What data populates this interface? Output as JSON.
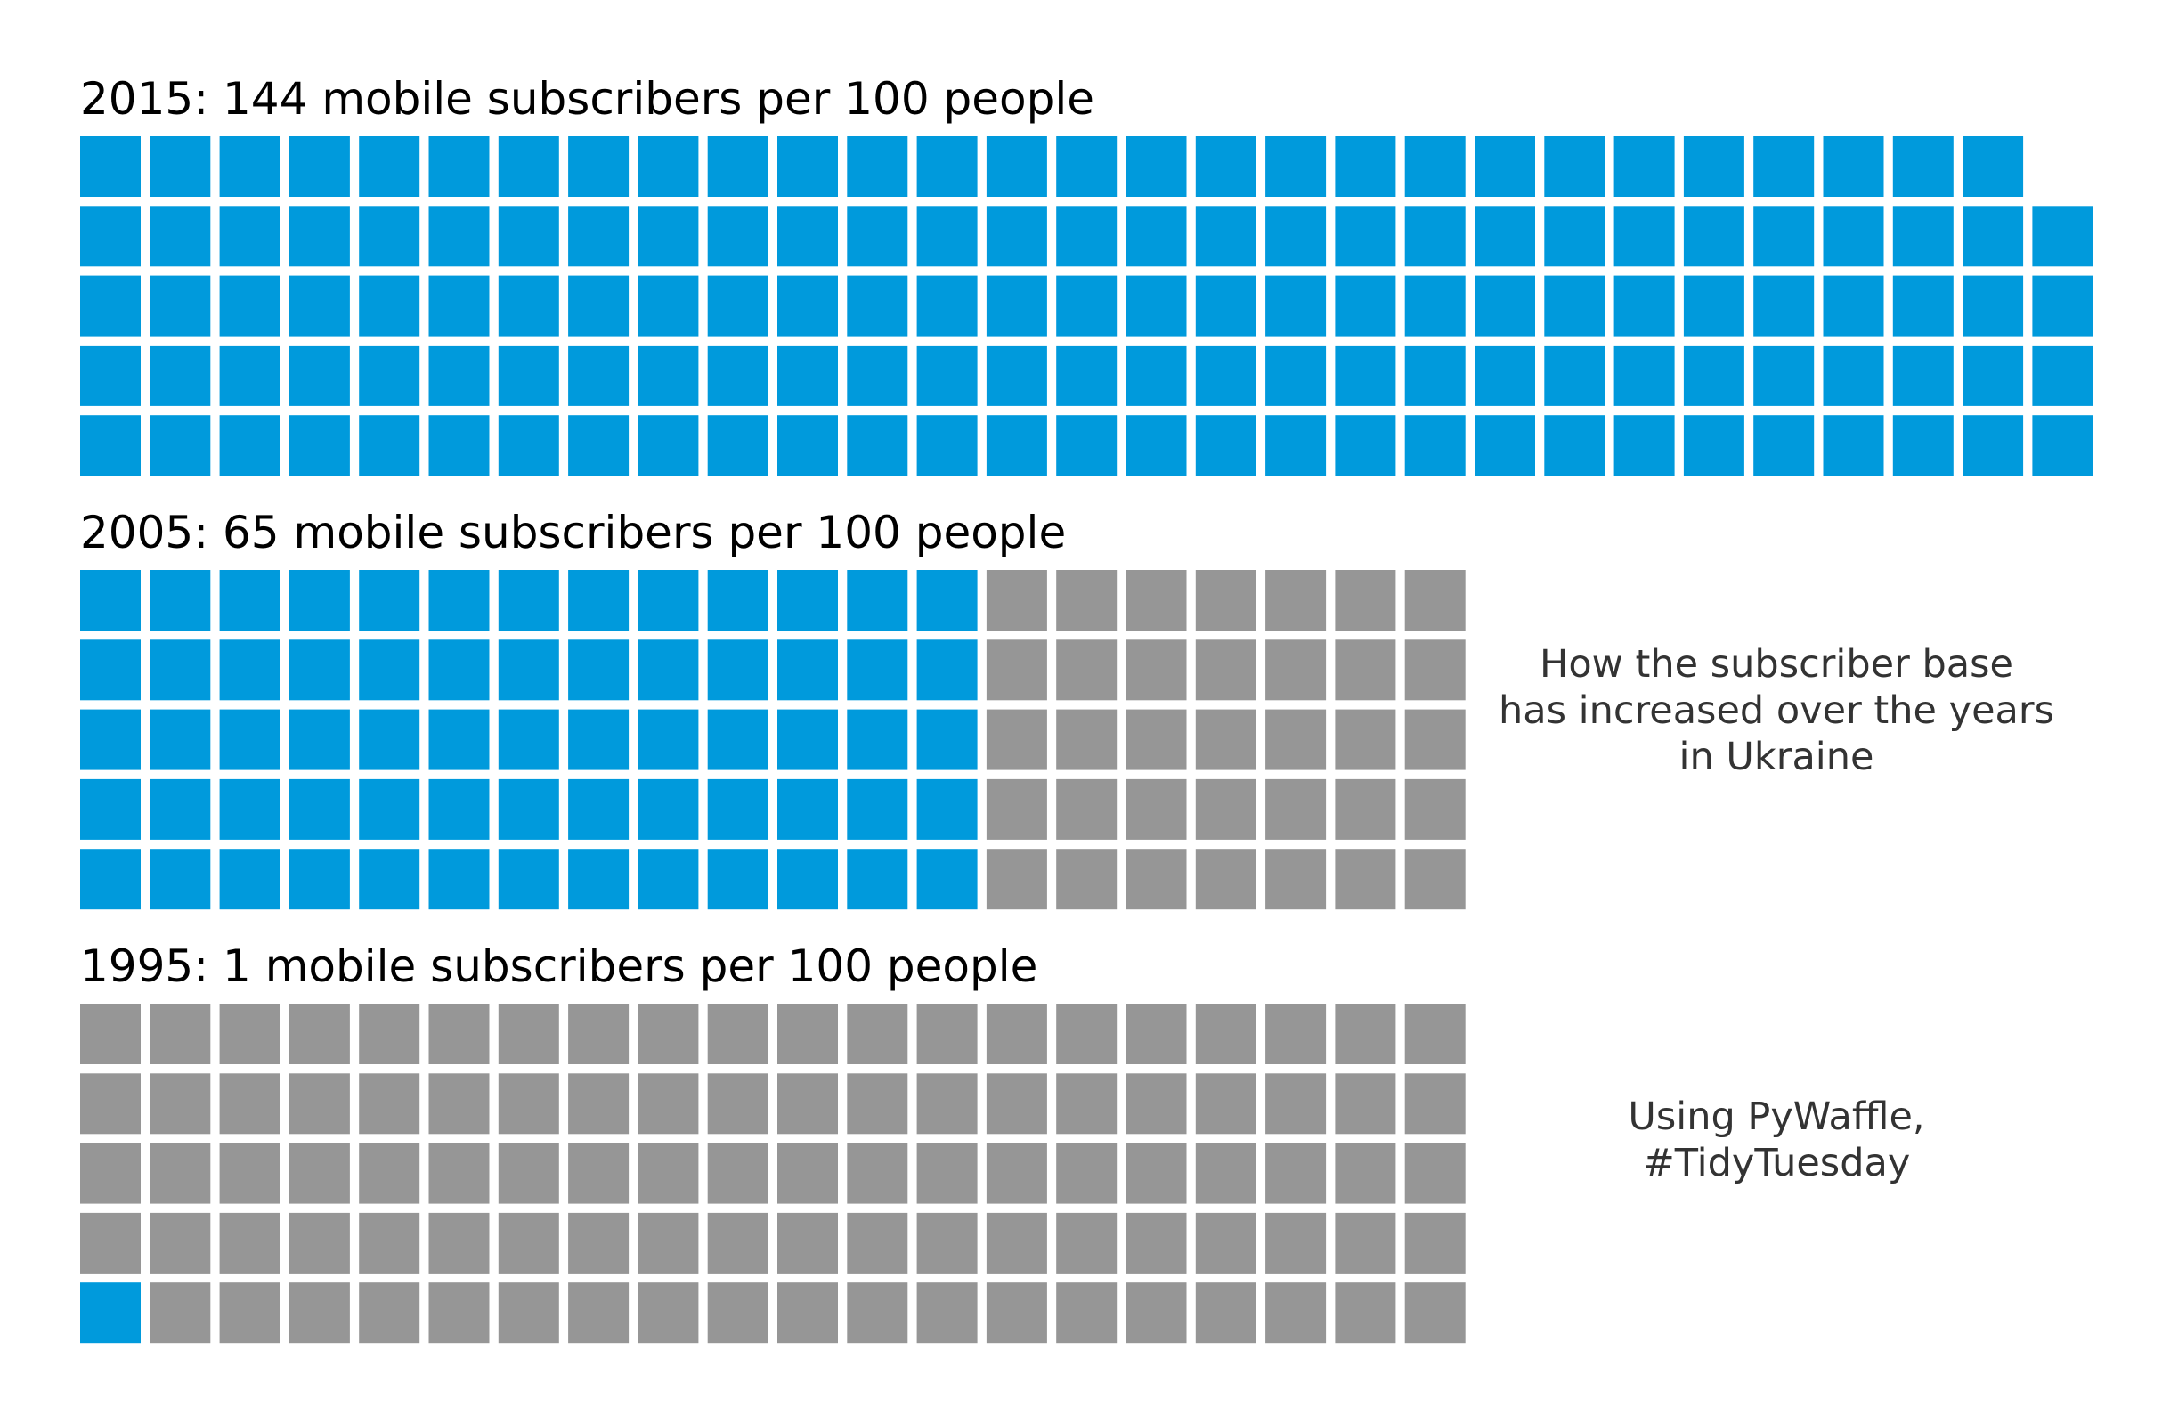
{
  "chart_data": [
    {
      "type": "waffle",
      "title": "2015: 144 mobile subscribers per 100 people",
      "year": "2015",
      "values": [
        144,
        0
      ],
      "rows": 5,
      "colors": [
        "#009ADC",
        "#969696"
      ]
    },
    {
      "type": "waffle",
      "title": "2005: 65 mobile subscribers per 100 people",
      "year": "2005",
      "values": [
        65,
        35
      ],
      "rows": 5,
      "colors": [
        "#009ADC",
        "#969696"
      ]
    },
    {
      "type": "waffle",
      "title": "1995: 1 mobile subscribers per 100 people",
      "year": "1995",
      "values": [
        1,
        99
      ],
      "rows": 5,
      "colors": [
        "#009ADC",
        "#969696"
      ]
    }
  ],
  "annotations": {
    "description": [
      "How the subscriber base",
      "has increased over the years",
      "in Ukraine"
    ],
    "credit": [
      "Using PyWaffle,",
      "#TidyTuesday"
    ]
  },
  "colors": {
    "filled": "#009ADC",
    "empty": "#969696",
    "title_text": "#000000",
    "annotation_text": "#333333"
  }
}
